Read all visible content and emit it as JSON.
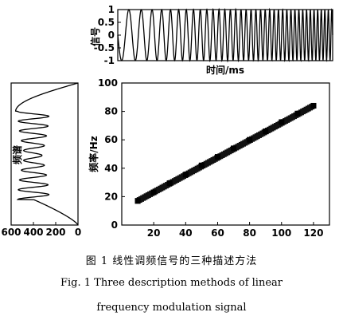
{
  "chart_data": [
    {
      "type": "line",
      "panel": "signal",
      "ylabel": "信号",
      "xlabel": "时间/ms",
      "ylim": [
        -1,
        1
      ],
      "y_ticks": [
        "1",
        "0.5",
        "0",
        "-0.5",
        "-1"
      ],
      "chirp": {
        "f_start": 20,
        "f_end": 120,
        "cycles": 38,
        "amplitude": 1
      }
    },
    {
      "type": "line",
      "panel": "spectrum",
      "ylabel": "频谱",
      "x_ticks": [
        "600",
        "400",
        "200",
        "0"
      ],
      "xlim": [
        600,
        0
      ]
    },
    {
      "type": "scatter",
      "panel": "time-frequency",
      "ylabel": "频率/Hz",
      "xlim": [
        0,
        130
      ],
      "ylim": [
        0,
        100
      ],
      "x_ticks": [
        "20",
        "40",
        "60",
        "80",
        "100",
        "120"
      ],
      "y_ticks": [
        "0",
        "20",
        "40",
        "60",
        "80",
        "100"
      ],
      "x": [
        10,
        20,
        30,
        40,
        50,
        60,
        70,
        80,
        90,
        100,
        110,
        120
      ],
      "y": [
        17,
        23,
        29.5,
        35.5,
        42,
        48,
        54,
        60,
        66,
        72.5,
        78.5,
        84
      ]
    }
  ],
  "caption": {
    "cn": "图 1   线性调频信号的三种描述方法",
    "en_line1": "Fig. 1    Three description methods of linear",
    "en_line2": "frequency modulation signal"
  }
}
